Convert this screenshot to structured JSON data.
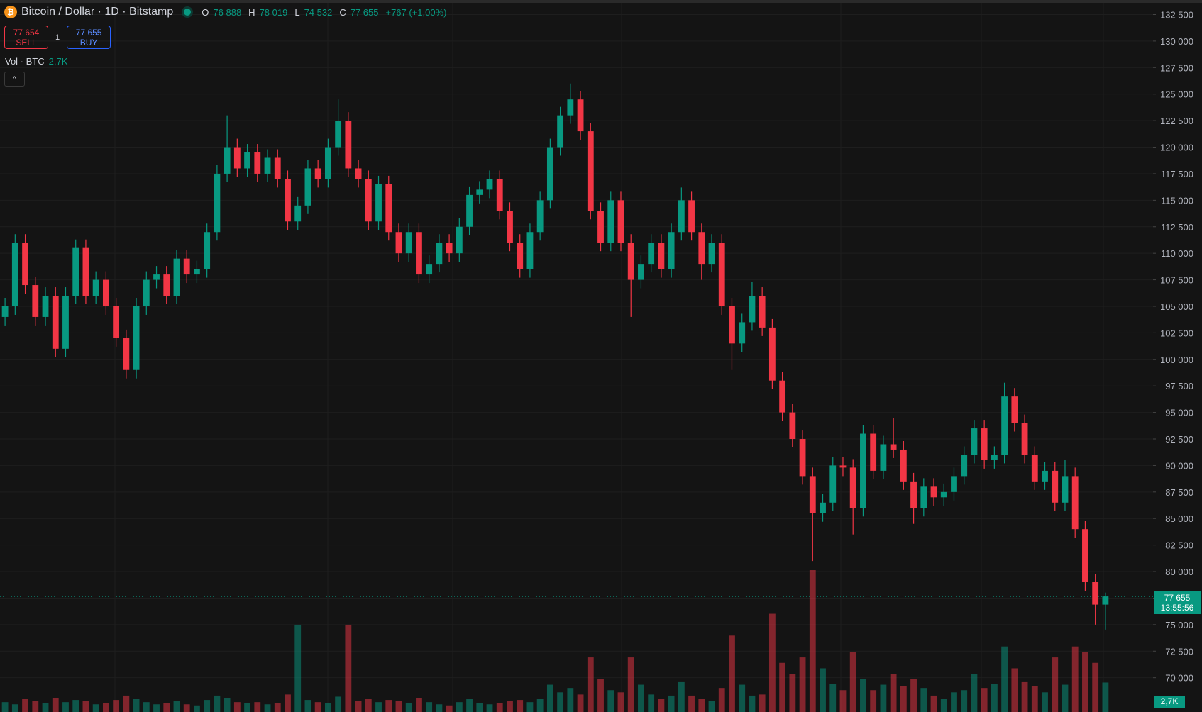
{
  "chart_data": {
    "type": "candlestick",
    "title": "Bitcoin / Dollar · 1D · Bitstamp",
    "header": {
      "o_key": "O",
      "o": "76 888",
      "h_key": "H",
      "h": "78 019",
      "l_key": "L",
      "l": "74 532",
      "c_key": "C",
      "c": "77 655",
      "change": "+767 (+1,00%)"
    },
    "trade": {
      "sell_price": "77 654",
      "sell": "SELL",
      "qty": "1",
      "buy_price": "77 655",
      "buy": "BUY"
    },
    "price_tag": {
      "price": "77 655",
      "countdown": "13:55:56"
    },
    "colors": {
      "up": "#089981",
      "down": "#f23645"
    },
    "grid": true,
    "open": [
      104000,
      105000,
      111000,
      107000,
      104000,
      106000,
      101000,
      106000,
      110500,
      106000,
      107500,
      105000,
      102000,
      99000,
      105000,
      107500,
      108000,
      106000,
      109500,
      108000,
      108500,
      112000,
      117500,
      120000,
      118000,
      119500,
      117500,
      119000,
      117000,
      113000,
      114500,
      118000,
      117000,
      120000,
      122500,
      118000,
      117000,
      113000,
      116500,
      112000,
      110000,
      112000,
      108000,
      109000,
      111000,
      110000,
      112500,
      115500,
      116000,
      117000,
      114000,
      111000,
      108500,
      112000,
      115000,
      120000,
      123000,
      124500,
      121500,
      114000,
      111000,
      115000,
      111000,
      107500,
      109000,
      111000,
      108500,
      112000,
      115000,
      112000,
      109000,
      111000,
      105000,
      101500,
      103500,
      106000,
      103000,
      98000,
      95000,
      92500,
      89000,
      85500,
      86500,
      90000,
      89800,
      86000,
      93000,
      89500,
      92000,
      91500,
      88500,
      86000,
      88000,
      87000,
      87500,
      89000,
      91000,
      93500,
      90500,
      91000,
      96500,
      94000,
      91000,
      88500,
      89500,
      86500,
      89000,
      84000,
      79000,
      76888
    ],
    "high": [
      105800,
      111800,
      111800,
      107800,
      106800,
      106800,
      106800,
      111300,
      111300,
      108300,
      108300,
      105800,
      102800,
      105800,
      108300,
      108800,
      108800,
      110300,
      110300,
      109300,
      112800,
      118300,
      123000,
      120800,
      120300,
      120300,
      119800,
      119800,
      117800,
      115300,
      118800,
      118800,
      120800,
      124500,
      123300,
      118800,
      117800,
      117300,
      117300,
      112800,
      112800,
      112800,
      109800,
      111800,
      111800,
      113300,
      116300,
      116800,
      117800,
      117800,
      114800,
      111800,
      112800,
      115800,
      120800,
      123800,
      126000,
      125300,
      122300,
      114800,
      115800,
      115800,
      111800,
      109800,
      111800,
      111800,
      112800,
      116200,
      115800,
      112800,
      111800,
      111800,
      105800,
      104300,
      107300,
      106800,
      103800,
      98800,
      95800,
      93300,
      89800,
      87300,
      90800,
      90800,
      90600,
      93800,
      93800,
      92800,
      94500,
      92300,
      89300,
      88800,
      88800,
      88300,
      89800,
      91800,
      94300,
      94300,
      91800,
      97800,
      97300,
      94800,
      91800,
      90300,
      90300,
      90500,
      89800,
      84800,
      79800,
      78019
    ],
    "low": [
      103200,
      104200,
      106200,
      103200,
      103200,
      100200,
      100200,
      105200,
      105200,
      105200,
      104200,
      101200,
      98200,
      98200,
      104200,
      106700,
      105200,
      105200,
      107200,
      107200,
      107700,
      111200,
      116700,
      117200,
      117200,
      116700,
      116700,
      116200,
      112200,
      112200,
      113700,
      116200,
      116200,
      119200,
      117200,
      116200,
      112200,
      112200,
      111200,
      109200,
      109200,
      107200,
      107200,
      108200,
      109200,
      109200,
      111700,
      114700,
      115200,
      113200,
      110200,
      107700,
      107700,
      111200,
      114200,
      119200,
      122200,
      120700,
      113200,
      110200,
      110200,
      110200,
      104000,
      106700,
      108200,
      107700,
      107700,
      111200,
      111200,
      107500,
      108200,
      104200,
      99000,
      100700,
      102700,
      102200,
      97200,
      94200,
      91700,
      88200,
      81000,
      84700,
      85700,
      89000,
      83500,
      85200,
      88700,
      88700,
      90700,
      87700,
      84500,
      85200,
      86200,
      86200,
      86700,
      88200,
      90200,
      89700,
      89700,
      90200,
      93200,
      90200,
      87700,
      87700,
      85700,
      85700,
      83200,
      78200,
      75000,
      74532
    ],
    "close": [
      105000,
      111000,
      107000,
      104000,
      106000,
      101000,
      106000,
      110500,
      106000,
      107500,
      105000,
      102000,
      99000,
      105000,
      107500,
      108000,
      106000,
      109500,
      108000,
      108500,
      112000,
      117500,
      120000,
      118000,
      119500,
      117500,
      119000,
      117000,
      113000,
      114500,
      118000,
      117000,
      120000,
      122500,
      118000,
      117000,
      113000,
      116500,
      112000,
      110000,
      112000,
      108000,
      109000,
      111000,
      110000,
      112500,
      115500,
      116000,
      117000,
      114000,
      111000,
      108500,
      112000,
      115000,
      120000,
      123000,
      124500,
      121500,
      114000,
      111000,
      115000,
      111000,
      107500,
      109000,
      111000,
      108500,
      112000,
      115000,
      112000,
      109000,
      111000,
      105000,
      101500,
      103500,
      106000,
      103000,
      98000,
      95000,
      92500,
      89000,
      85500,
      86500,
      90000,
      89800,
      86000,
      93000,
      89500,
      92000,
      91500,
      88500,
      86000,
      88000,
      87000,
      87500,
      89000,
      91000,
      93500,
      90500,
      91000,
      96500,
      94000,
      91000,
      88500,
      89500,
      86500,
      89000,
      84000,
      79000,
      76888,
      77655
    ],
    "volume": {
      "name": "Vol · BTC",
      "legend_value": "2,7K",
      "axis_value": "2,7K",
      "values": [
        900,
        700,
        1200,
        1000,
        800,
        1300,
        900,
        1100,
        1000,
        700,
        800,
        1100,
        1500,
        1200,
        900,
        700,
        800,
        1000,
        700,
        600,
        1100,
        1500,
        1300,
        900,
        800,
        900,
        700,
        800,
        1600,
        8000,
        1100,
        900,
        800,
        1400,
        8000,
        1000,
        1200,
        900,
        1100,
        1000,
        800,
        1300,
        900,
        700,
        600,
        900,
        1200,
        800,
        700,
        800,
        1000,
        1100,
        900,
        1200,
        2500,
        1800,
        2200,
        1600,
        5000,
        3000,
        2000,
        1800,
        5000,
        2500,
        1600,
        1200,
        1500,
        2800,
        1500,
        1200,
        1000,
        2200,
        7000,
        2500,
        1500,
        1600,
        9000,
        4500,
        3500,
        5000,
        13000,
        4000,
        2600,
        2000,
        5500,
        3000,
        2000,
        2500,
        3500,
        2400,
        3000,
        2200,
        1500,
        1200,
        1800,
        2000,
        3500,
        2200,
        2600,
        6000,
        4000,
        2800,
        2400,
        1800,
        5000,
        2500,
        6000,
        5500,
        4500,
        2700
      ]
    },
    "ylim": [
      66770,
      133870
    ],
    "yticks": [
      {
        "value": 70000,
        "label": "70 000"
      },
      {
        "value": 72500,
        "label": "72 500"
      },
      {
        "value": 75000,
        "label": "75 000"
      },
      {
        "value": 77500,
        "label": "77 500"
      },
      {
        "value": 80000,
        "label": "80 000"
      },
      {
        "value": 82500,
        "label": "82 500"
      },
      {
        "value": 85000,
        "label": "85 000"
      },
      {
        "value": 87500,
        "label": "87 500"
      },
      {
        "value": 90000,
        "label": "90 000"
      },
      {
        "value": 92500,
        "label": "92 500"
      },
      {
        "value": 95000,
        "label": "95 000"
      },
      {
        "value": 97500,
        "label": "97 500"
      },
      {
        "value": 100000,
        "label": "100 000"
      },
      {
        "value": 102500,
        "label": "102 500"
      },
      {
        "value": 105000,
        "label": "105 000"
      },
      {
        "value": 107500,
        "label": "107 500"
      },
      {
        "value": 110000,
        "label": "110 000"
      },
      {
        "value": 112500,
        "label": "112 500"
      },
      {
        "value": 115000,
        "label": "115 000"
      },
      {
        "value": 117500,
        "label": "117 500"
      },
      {
        "value": 120000,
        "label": "120 000"
      },
      {
        "value": 122500,
        "label": "122 500"
      },
      {
        "value": 125000,
        "label": "125 000"
      },
      {
        "value": 127500,
        "label": "127 500"
      },
      {
        "value": 130000,
        "label": "130 000"
      },
      {
        "value": 132500,
        "label": "132 500"
      }
    ]
  }
}
